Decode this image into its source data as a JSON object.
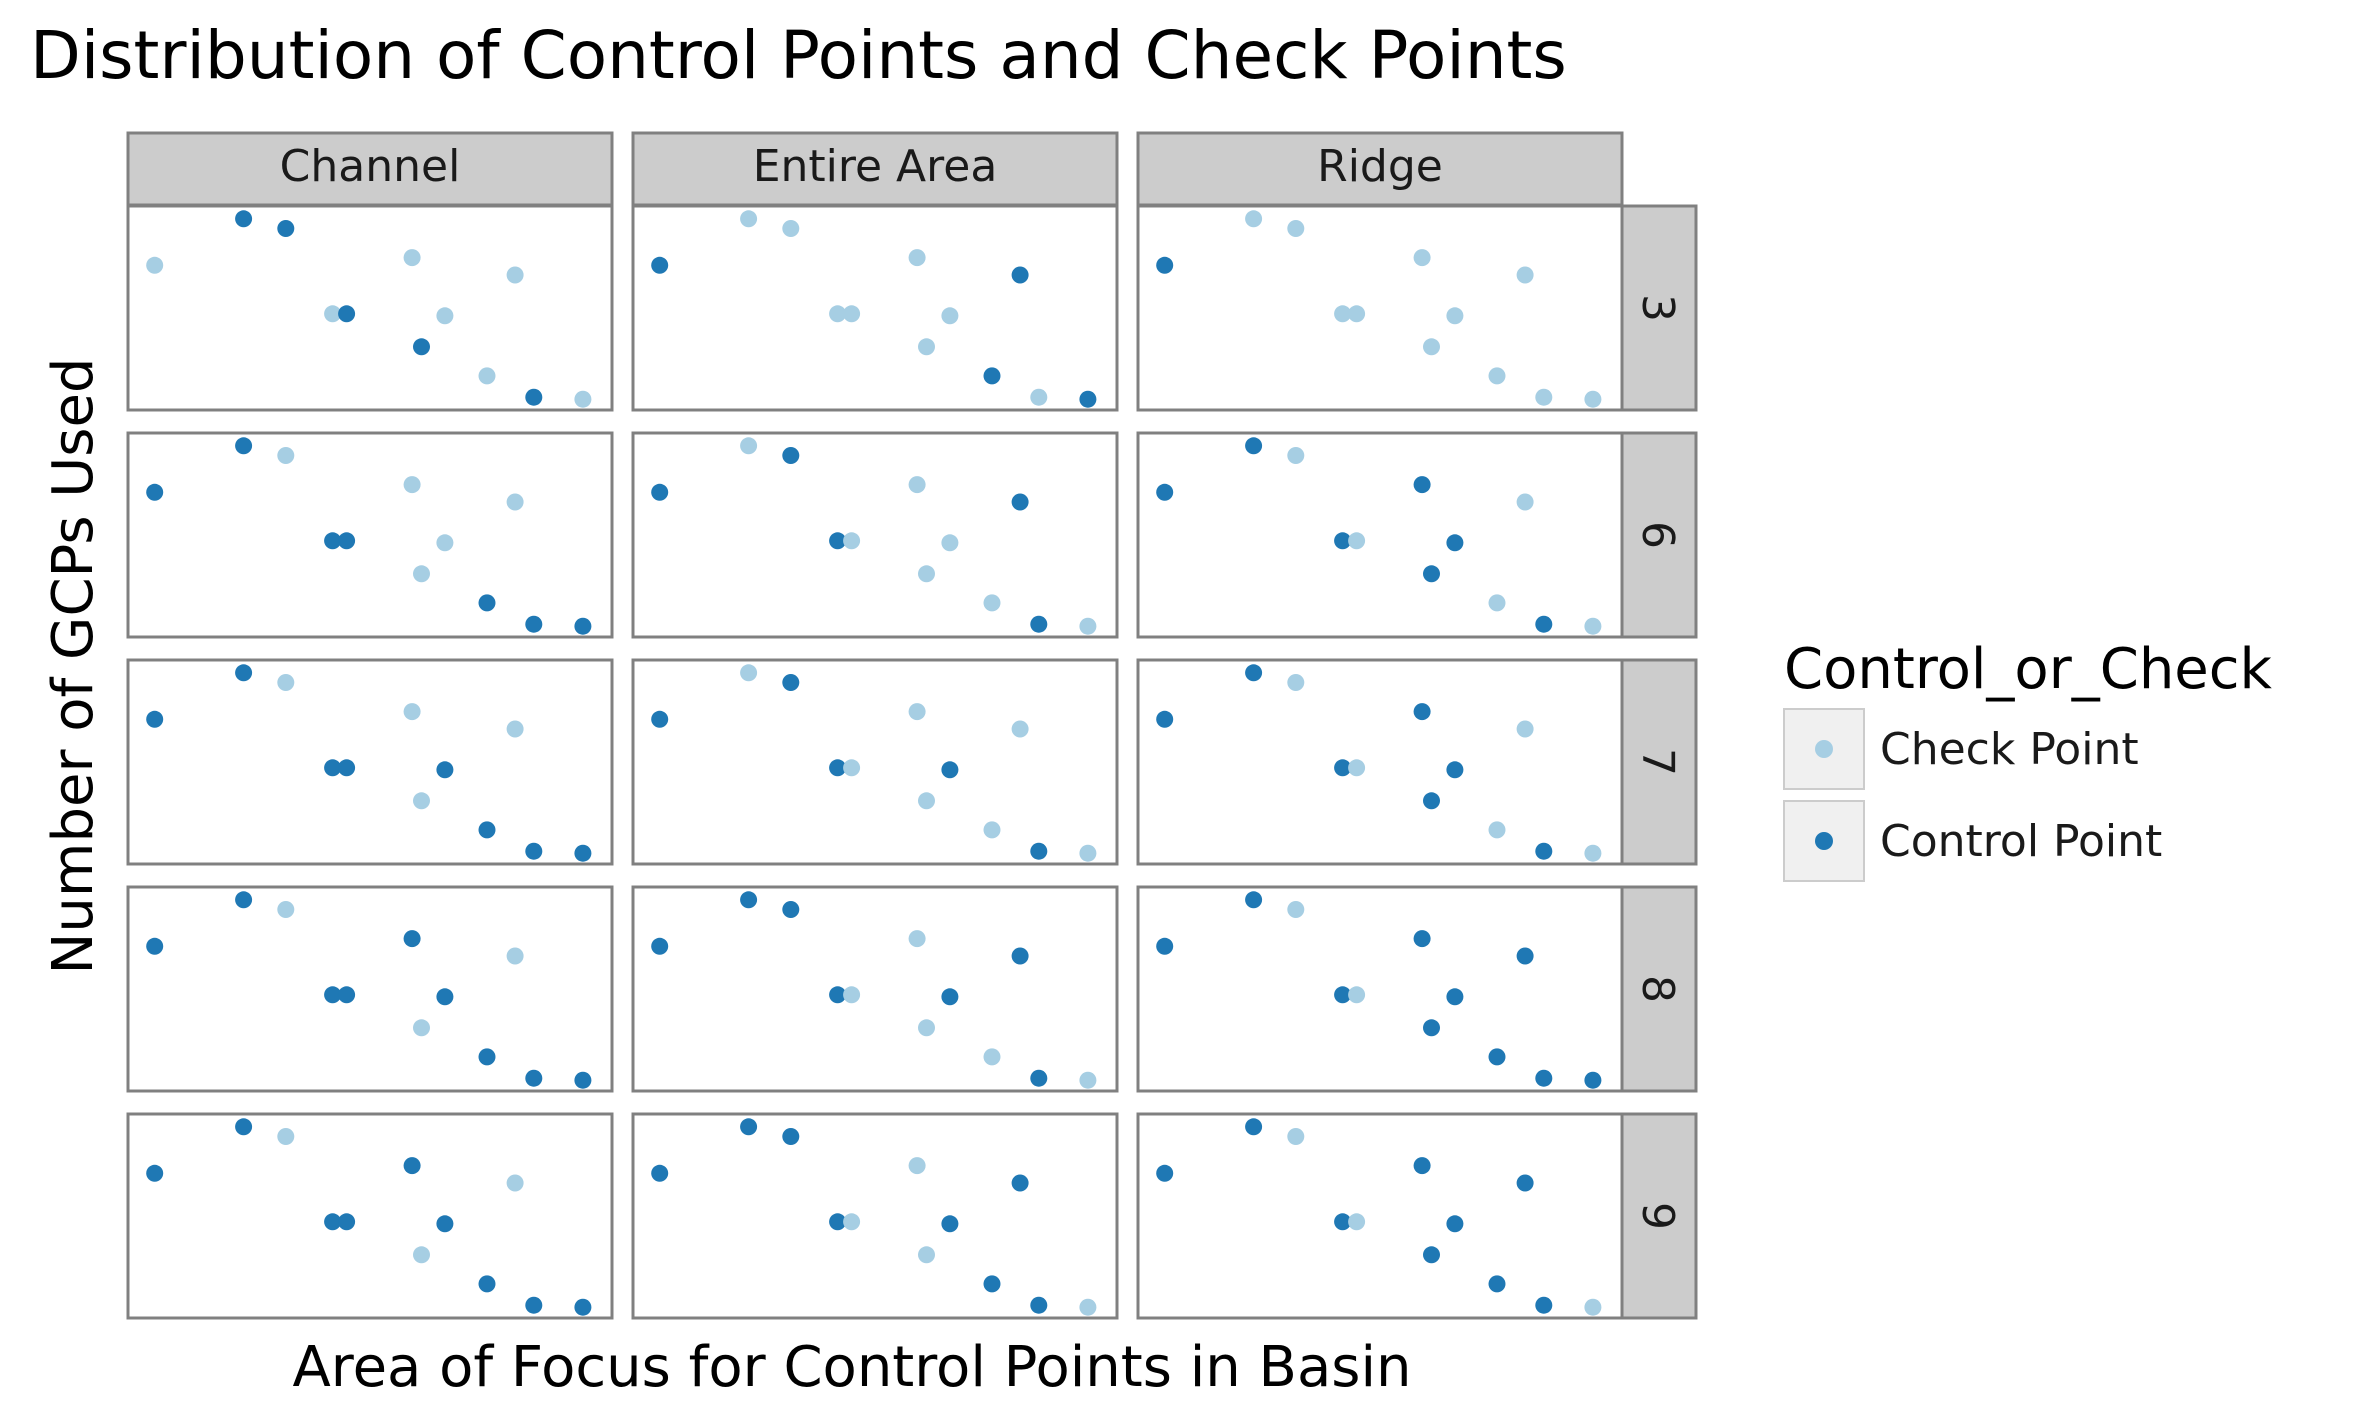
{
  "chart_data": {
    "type": "scatter",
    "title": "Distribution of Control Points and Check Points",
    "xlabel": "Area of Focus for Control Points in Basin",
    "ylabel": "Number of GCPs Used",
    "xlim": [
      0,
      1
    ],
    "ylim": [
      0,
      1
    ],
    "grid": false,
    "column_facets": [
      "Channel",
      "Entire Area",
      "Ridge"
    ],
    "row_facets": [
      "3",
      "6",
      "7",
      "8",
      "9"
    ],
    "legend": {
      "title": "Control_or_Check",
      "position": "right",
      "entries": [
        {
          "label": "Check Point",
          "key": "check",
          "color": "#a6cee3"
        },
        {
          "label": "Control Point",
          "key": "control",
          "color": "#1f78b4"
        }
      ]
    },
    "points": [
      {
        "x": 0.04,
        "y": 0.72
      },
      {
        "x": 0.23,
        "y": 0.96
      },
      {
        "x": 0.32,
        "y": 0.91
      },
      {
        "x": 0.42,
        "y": 0.47
      },
      {
        "x": 0.45,
        "y": 0.47
      },
      {
        "x": 0.59,
        "y": 0.76
      },
      {
        "x": 0.61,
        "y": 0.3
      },
      {
        "x": 0.66,
        "y": 0.46
      },
      {
        "x": 0.81,
        "y": 0.67
      },
      {
        "x": 0.75,
        "y": 0.15
      },
      {
        "x": 0.85,
        "y": 0.04
      },
      {
        "x": 0.955,
        "y": 0.03
      }
    ],
    "panels": {
      "Channel": {
        "3": "kcckckckkkck",
        "6": "cckcckkkkccc",
        "7": "cckcckkckccc",
        "8": "cckccckckccc",
        "9": "cckccckckccc"
      },
      "Entire Area": {
        "3": "ckkkkkkkcckc",
        "6": "ckcckkkkckck",
        "7": "ckcckkkckkck",
        "8": "cccckkkcckck",
        "9": "cccckkkcccck"
      },
      "Ridge": {
        "3": "ckkkkkkkkkkk",
        "6": "cckckccckkck",
        "7": "cckckccckkck",
        "8": "cckckccccccc",
        "9": "cckckcccccck"
      }
    },
    "point_key_legend": {
      "c": "Control Point",
      "k": "Check Point"
    }
  }
}
